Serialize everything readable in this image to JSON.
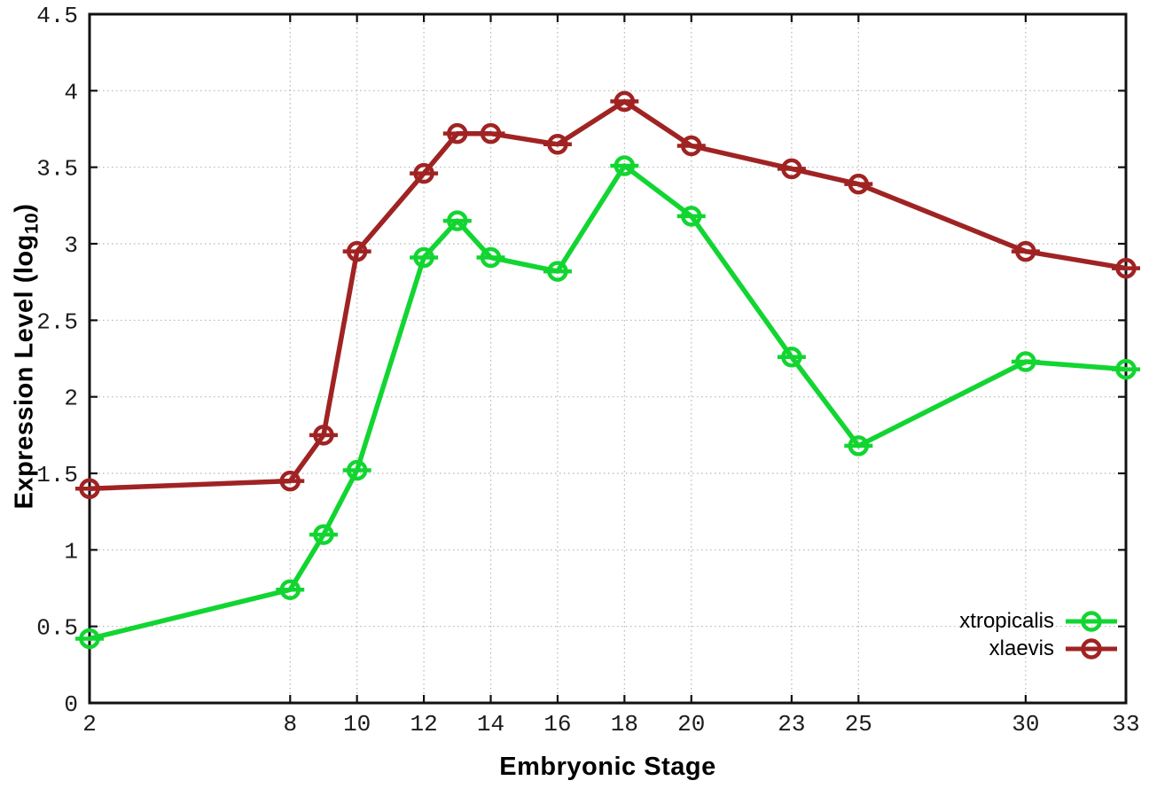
{
  "chart_data": {
    "type": "line",
    "title": "",
    "xlabel": "Embryonic Stage",
    "ylabel": "Expression Level (log10)",
    "ylabel_parts": {
      "pre": "Expression Level (log",
      "sub": "10",
      "post": ")"
    },
    "x": [
      2,
      8,
      9,
      10,
      12,
      13,
      14,
      16,
      18,
      20,
      23,
      25,
      30,
      33
    ],
    "series": [
      {
        "name": "xtropicalis",
        "color": "#12D531",
        "values": [
          0.42,
          0.74,
          1.1,
          1.52,
          2.91,
          3.15,
          2.91,
          2.82,
          3.51,
          3.18,
          2.26,
          1.68,
          2.23,
          2.18
        ]
      },
      {
        "name": "xlaevis",
        "color": "#A02323",
        "values": [
          1.4,
          1.45,
          1.75,
          2.95,
          3.46,
          3.72,
          3.72,
          3.65,
          3.93,
          3.64,
          3.49,
          3.39,
          2.95,
          2.84
        ]
      }
    ],
    "xlim": [
      2,
      33
    ],
    "ylim": [
      0,
      4.5
    ],
    "xticks": {
      "values": [
        2,
        8,
        10,
        12,
        14,
        16,
        18,
        20,
        23,
        25,
        30,
        33
      ],
      "labels": [
        "2",
        "8",
        "10",
        "12",
        "14",
        "16",
        "18",
        "20",
        "23",
        "25",
        "30",
        "33"
      ]
    },
    "yticks": {
      "values": [
        0,
        0.5,
        1,
        1.5,
        2,
        2.5,
        3,
        3.5,
        4,
        4.5
      ],
      "labels": [
        "0",
        "0.5",
        "1",
        "1.5",
        "2",
        "2.5",
        "3",
        "3.5",
        "4",
        "4.5"
      ]
    },
    "grid": "dotted",
    "legend_position": "bottom-right",
    "marker": "open-circle-with-error-caps"
  },
  "style": {
    "background": "#ffffff",
    "axis_color": "#111111",
    "grid_color": "#b5b5b5",
    "tick_label_color": "#1c1c1c"
  }
}
